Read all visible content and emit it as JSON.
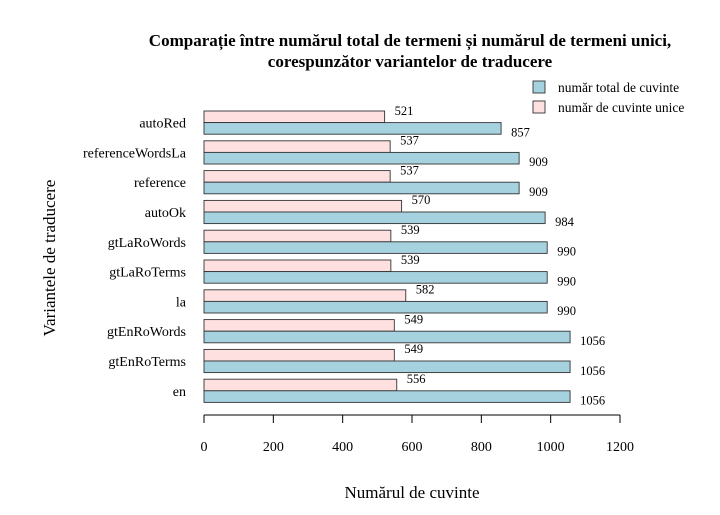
{
  "chart_data": {
    "type": "bar",
    "orientation": "horizontal",
    "title_lines": [
      "Comparație între numărul total de termeni și numărul de termeni unici,",
      "corespunzător variantelor de traducere"
    ],
    "xlabel": "Numărul de cuvinte",
    "ylabel": "Variantele de traducere",
    "xlim": [
      0,
      1200
    ],
    "xticks": [
      0,
      200,
      400,
      600,
      800,
      1000,
      1200
    ],
    "legend_position": "top-right",
    "categories": [
      "autoRed",
      "referenceWordsLa",
      "reference",
      "autoOk",
      "gtLaRoWords",
      "gtLaRoTerms",
      "la",
      "gtEnRoWords",
      "gtEnRoTerms",
      "en"
    ],
    "series": [
      {
        "name": "număr de cuvinte unice",
        "color": "#ffe0e0",
        "values": [
          521,
          537,
          537,
          570,
          539,
          539,
          582,
          549,
          549,
          556
        ]
      },
      {
        "name": "număr total de cuvinte",
        "color": "#a6d2e0",
        "values": [
          857,
          909,
          909,
          984,
          990,
          990,
          990,
          1056,
          1056,
          1056
        ]
      }
    ],
    "legend_order": [
      "număr total de cuvinte",
      "număr de cuvinte unice"
    ]
  }
}
